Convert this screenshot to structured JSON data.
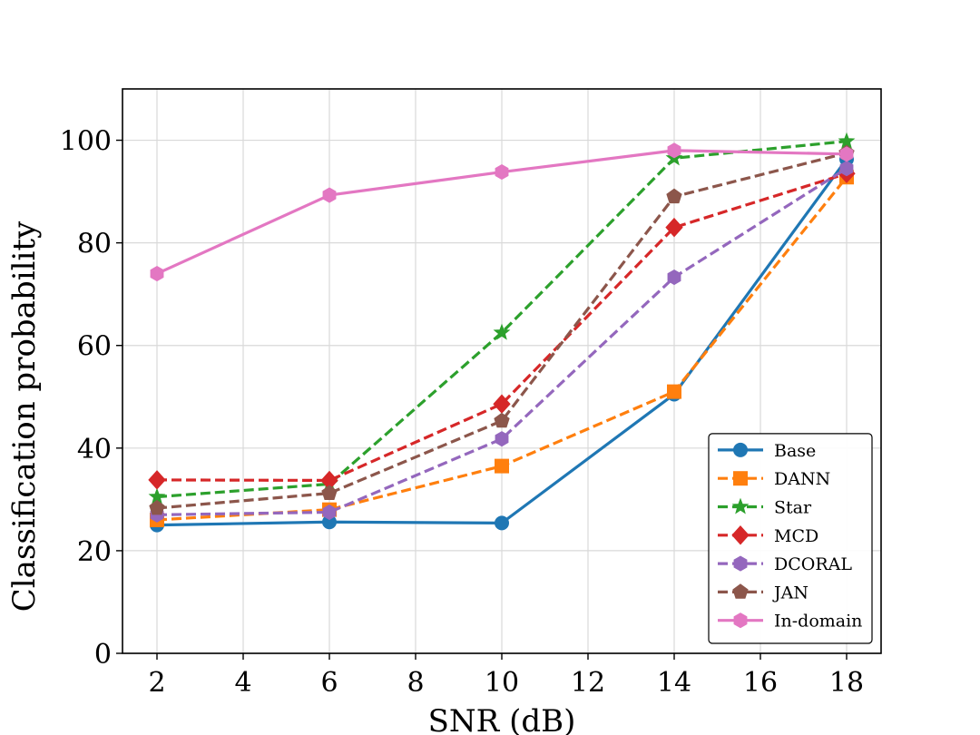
{
  "chart_data": {
    "type": "line",
    "title": "",
    "xlabel": "SNR (dB)",
    "ylabel": "Classification probability",
    "x": [
      2,
      6,
      10,
      14,
      18
    ],
    "xlim": [
      1.2,
      18.8
    ],
    "ylim": [
      0,
      110
    ],
    "xticks": [
      2,
      4,
      6,
      8,
      10,
      12,
      14,
      16,
      18
    ],
    "yticks": [
      0,
      20,
      40,
      60,
      80,
      100
    ],
    "grid": true,
    "legend_position": "lower-right",
    "series": [
      {
        "name": "Base",
        "values": [
          25.0,
          25.6,
          25.4,
          50.5,
          96.3
        ],
        "color": "#1f77b4",
        "dash": "solid",
        "marker": "circle"
      },
      {
        "name": "DANN",
        "values": [
          26.0,
          28.0,
          36.5,
          51.0,
          92.8
        ],
        "color": "#ff7f0e",
        "dash": "dashed",
        "marker": "square"
      },
      {
        "name": "Star",
        "values": [
          30.5,
          33.0,
          62.5,
          96.5,
          99.8
        ],
        "color": "#2ca02c",
        "dash": "dashed",
        "marker": "star"
      },
      {
        "name": "MCD",
        "values": [
          33.8,
          33.7,
          48.6,
          83.0,
          93.5
        ],
        "color": "#d62728",
        "dash": "dashed",
        "marker": "diamond"
      },
      {
        "name": "DCORAL",
        "values": [
          27.0,
          27.5,
          41.8,
          73.3,
          94.5
        ],
        "color": "#9467bd",
        "dash": "dashed",
        "marker": "hexagon"
      },
      {
        "name": "JAN",
        "values": [
          28.3,
          31.2,
          45.3,
          89.0,
          97.5
        ],
        "color": "#8c564b",
        "dash": "dashed",
        "marker": "pentagon"
      },
      {
        "name": "In-domain",
        "values": [
          74.0,
          89.3,
          93.8,
          98.0,
          97.3
        ],
        "color": "#e377c2",
        "dash": "solid",
        "marker": "hexagon"
      }
    ]
  }
}
